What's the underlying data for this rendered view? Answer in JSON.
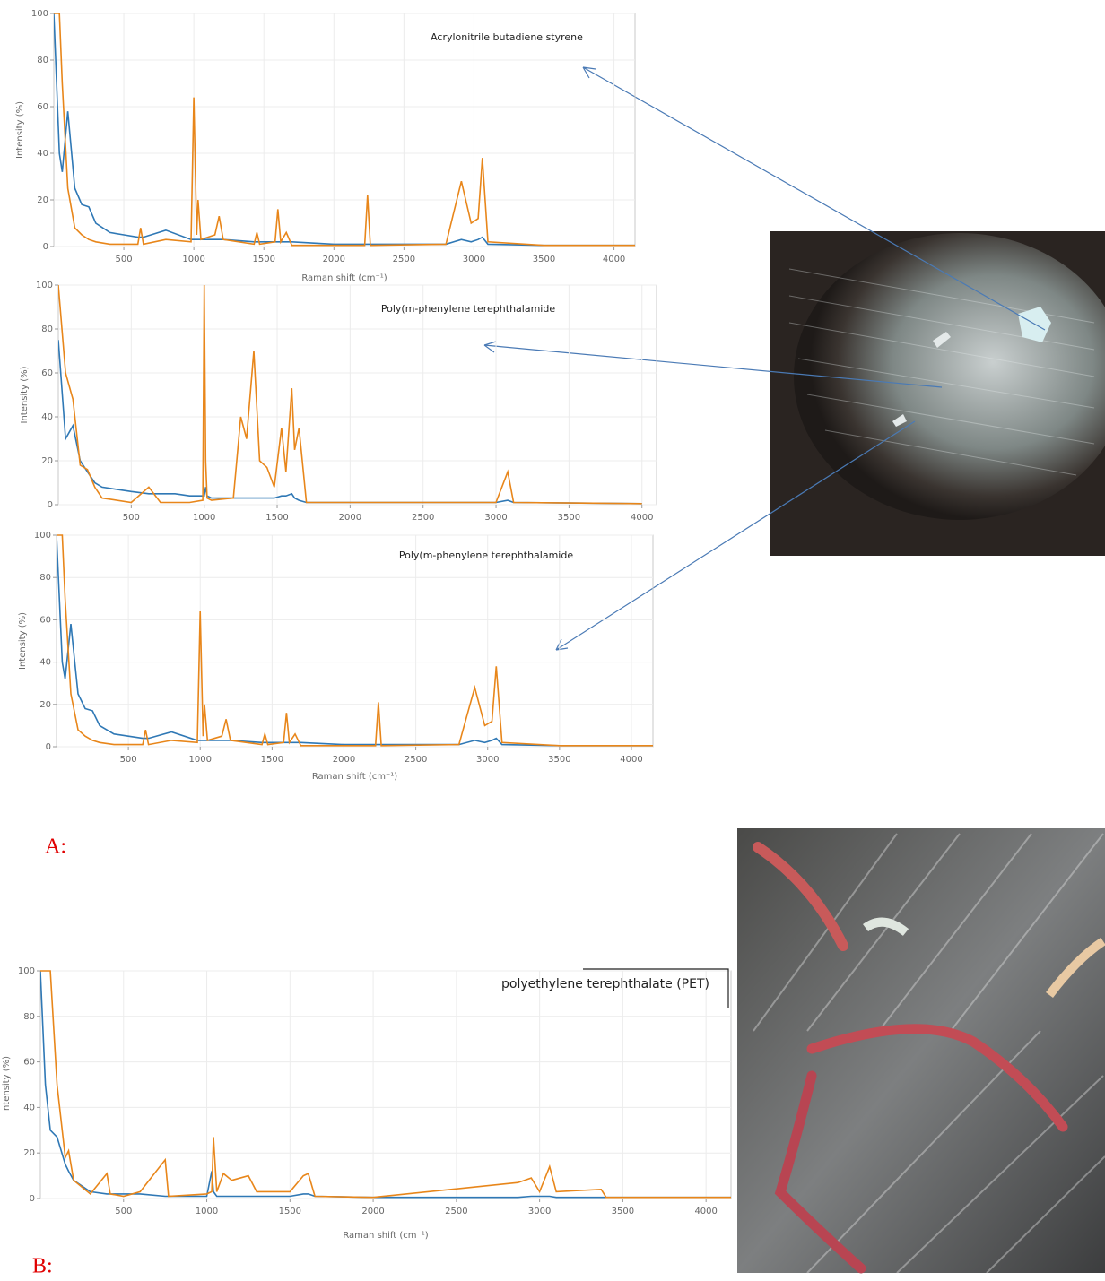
{
  "chart_data": [
    {
      "type": "line",
      "title": "Acrylonitrile butadiene styrene",
      "xlabel": "Raman shift (cm⁻¹)",
      "ylabel": "Intensity (%)",
      "x": [
        0,
        40,
        60,
        100,
        150,
        200,
        250,
        300,
        400,
        500,
        600,
        620,
        640,
        800,
        980,
        1000,
        1020,
        1030,
        1050,
        1150,
        1180,
        1210,
        1430,
        1450,
        1470,
        1580,
        1600,
        1620,
        1660,
        1700,
        2000,
        2220,
        2240,
        2260,
        2800,
        2910,
        2980,
        3030,
        3060,
        3100,
        3500,
        4150
      ],
      "series": [
        {
          "color": "#2f78b5",
          "values": [
            100,
            40,
            32,
            58,
            25,
            18,
            17,
            10,
            6,
            5,
            4,
            4,
            4,
            7,
            3,
            3,
            3,
            3,
            3,
            3,
            3,
            3,
            2,
            2,
            2,
            2,
            2,
            2,
            2,
            2,
            1,
            1,
            1,
            1,
            1,
            3,
            2,
            3,
            4,
            1,
            0.5,
            0.5
          ]
        },
        {
          "color": "#e8861a",
          "values": [
            100,
            100,
            70,
            25,
            8,
            5,
            3,
            2,
            1,
            1,
            1,
            8,
            1,
            3,
            2,
            64,
            5,
            20,
            3,
            5,
            13,
            3,
            1,
            6,
            1,
            2,
            16,
            2,
            6,
            0.5,
            0.5,
            0.5,
            22,
            0.5,
            1,
            28,
            10,
            12,
            38,
            2,
            0.5,
            0.5
          ]
        }
      ],
      "xlim": [
        0,
        4150
      ],
      "ylim": [
        0,
        100
      ],
      "xticks": [
        500,
        1000,
        1500,
        2000,
        2500,
        3000,
        3500,
        4000
      ],
      "yticks": [
        0,
        20,
        40,
        60,
        80,
        100
      ],
      "grid": true
    },
    {
      "type": "line",
      "title": "Poly(m-phenylene terephthalamide",
      "ylabel": "Intensity (%)",
      "x": [
        0,
        50,
        100,
        150,
        200,
        250,
        300,
        500,
        620,
        700,
        800,
        900,
        990,
        1000,
        1010,
        1020,
        1050,
        1200,
        1250,
        1290,
        1340,
        1380,
        1430,
        1480,
        1530,
        1560,
        1600,
        1620,
        1650,
        1700,
        2000,
        3000,
        3080,
        3120,
        4000
      ],
      "series": [
        {
          "color": "#2f78b5",
          "values": [
            75,
            30,
            36,
            20,
            15,
            10,
            8,
            6,
            5,
            5,
            5,
            4,
            4,
            4,
            8,
            4,
            3,
            3,
            3,
            3,
            3,
            3,
            3,
            3,
            4,
            4,
            5,
            3,
            2,
            1,
            1,
            1,
            2,
            1,
            0.5
          ]
        },
        {
          "color": "#e8861a",
          "values": [
            100,
            60,
            48,
            18,
            16,
            8,
            3,
            1,
            8,
            1,
            1,
            1,
            2,
            100,
            20,
            3,
            2,
            3,
            40,
            30,
            70,
            20,
            17,
            8,
            35,
            15,
            53,
            25,
            35,
            1,
            1,
            1,
            15,
            1,
            0.5
          ]
        }
      ],
      "xlim": [
        0,
        4100
      ],
      "ylim": [
        0,
        100
      ],
      "xticks": [
        500,
        1000,
        1500,
        2000,
        2500,
        3000,
        3500,
        4000
      ],
      "yticks": [
        0,
        20,
        40,
        60,
        80,
        100
      ],
      "grid": true
    },
    {
      "type": "line",
      "title": "Poly(m-phenylene terephthalamide",
      "xlabel": "Raman shift (cm⁻¹)",
      "ylabel": "Intensity (%)",
      "x": [
        0,
        40,
        60,
        100,
        150,
        200,
        250,
        300,
        400,
        500,
        600,
        620,
        640,
        800,
        980,
        1000,
        1020,
        1030,
        1050,
        1150,
        1180,
        1210,
        1430,
        1450,
        1470,
        1580,
        1600,
        1620,
        1660,
        1700,
        2000,
        2220,
        2240,
        2260,
        2800,
        2910,
        2980,
        3030,
        3060,
        3100,
        3500,
        4150
      ],
      "series": [
        {
          "color": "#2f78b5",
          "values": [
            100,
            40,
            32,
            58,
            25,
            18,
            17,
            10,
            6,
            5,
            4,
            4,
            4,
            7,
            3,
            3,
            3,
            3,
            3,
            3,
            3,
            3,
            2,
            2,
            2,
            2,
            2,
            2,
            2,
            2,
            1,
            1,
            1,
            1,
            1,
            3,
            2,
            3,
            4,
            1,
            0.5,
            0.5
          ]
        },
        {
          "color": "#e8861a",
          "values": [
            100,
            100,
            70,
            25,
            8,
            5,
            3,
            2,
            1,
            1,
            1,
            8,
            1,
            3,
            2,
            64,
            5,
            20,
            3,
            5,
            13,
            3,
            1,
            6,
            1,
            2,
            16,
            2,
            6,
            0.5,
            0.5,
            0.5,
            21,
            0.5,
            1,
            28,
            10,
            12,
            38,
            2,
            0.5,
            0.5
          ]
        }
      ],
      "xlim": [
        0,
        4150
      ],
      "ylim": [
        0,
        100
      ],
      "xticks": [
        500,
        1000,
        1500,
        2000,
        2500,
        3000,
        3500,
        4000
      ],
      "yticks": [
        0,
        20,
        40,
        60,
        80,
        100
      ],
      "grid": true
    },
    {
      "type": "line",
      "title": "polyethylene terephthalate (PET)",
      "xlabel": "Raman shift (cm⁻¹)",
      "ylabel": "Intensity (%)",
      "x": [
        0,
        30,
        60,
        100,
        150,
        170,
        200,
        300,
        400,
        420,
        500,
        600,
        750,
        770,
        1000,
        1030,
        1040,
        1060,
        1100,
        1150,
        1250,
        1300,
        1500,
        1580,
        1610,
        1650,
        2000,
        2870,
        2950,
        3000,
        3060,
        3100,
        3370,
        3400,
        4150
      ],
      "series": [
        {
          "color": "#2f78b5",
          "values": [
            100,
            50,
            30,
            27,
            15,
            12,
            8,
            3,
            2,
            2,
            2,
            2,
            1,
            1,
            1,
            12,
            3,
            1,
            1,
            1,
            1,
            1,
            1,
            2,
            2,
            1,
            0.5,
            0.5,
            1,
            1,
            1,
            0.5,
            0.5,
            0.5,
            0.5
          ]
        },
        {
          "color": "#e8861a",
          "values": [
            100,
            100,
            100,
            50,
            18,
            21,
            8,
            2,
            11,
            2,
            1,
            3,
            17,
            1,
            2,
            3,
            27,
            3,
            11,
            8,
            10,
            3,
            3,
            10,
            11,
            1,
            0.5,
            7,
            9,
            3,
            14,
            3,
            4,
            0.5,
            0.5
          ]
        }
      ],
      "xlim": [
        0,
        4150
      ],
      "ylim": [
        0,
        100
      ],
      "xticks": [
        500,
        1000,
        1500,
        2000,
        2500,
        3000,
        3500,
        4000
      ],
      "yticks": [
        0,
        20,
        40,
        60,
        80,
        100
      ],
      "grid": true
    }
  ],
  "panel_labels": [
    "A:",
    "B:"
  ]
}
